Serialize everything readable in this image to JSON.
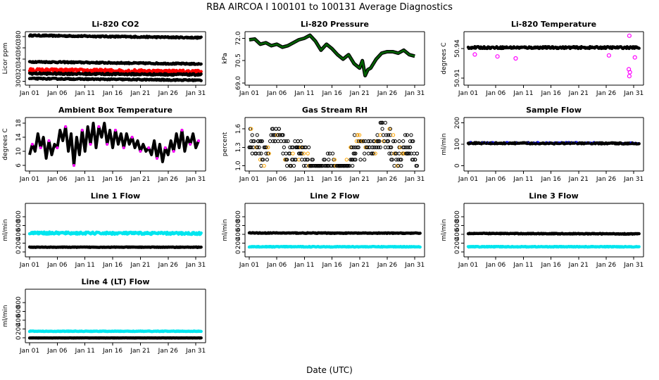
{
  "figure": {
    "title": "RBA   AIRCOA I   100101 to 100131   Average Diagnostics",
    "xlabel": "Date (UTC)"
  },
  "colors": {
    "black": "#000000",
    "red": "#ff0000",
    "magenta": "#ff00ff",
    "darkgreen": "#006400",
    "blue": "#0000ff",
    "cyan": "#00e5ee",
    "orange": "#ffa500"
  },
  "chart_data": [
    {
      "type": "scatter",
      "title": "Li-820 CO2",
      "ylabel": "Licor ppm",
      "xticks": [
        "Jan 01",
        "Jan 06",
        "Jan 11",
        "Jan 16",
        "Jan 21",
        "Jan 26",
        "Jan 31"
      ],
      "xlim": [
        1,
        32
      ],
      "ylim": [
        297,
        385
      ],
      "yticks": [
        300,
        320,
        340,
        360,
        380
      ],
      "series": [
        {
          "name": "band 1",
          "color": "black",
          "x": [
            1,
            32
          ],
          "y": [
            382,
            378
          ],
          "jitter": 1.2
        },
        {
          "name": "band 2",
          "color": "black",
          "x": [
            1,
            32
          ],
          "y": [
            335,
            331
          ],
          "jitter": 1.2
        },
        {
          "name": "band 3",
          "color": "red",
          "x": [
            1,
            32
          ],
          "y": [
            320,
            317
          ],
          "jitter": 3
        },
        {
          "name": "band 4",
          "color": "black",
          "x": [
            1,
            32
          ],
          "y": [
            314,
            312
          ],
          "jitter": 1.5
        },
        {
          "name": "band 5",
          "color": "black",
          "x": [
            1,
            32
          ],
          "y": [
            305,
            302
          ],
          "jitter": 1
        }
      ]
    },
    {
      "type": "line",
      "title": "Li-820 Pressure",
      "ylabel": "kPa",
      "xticks": [
        "Jan 01",
        "Jan 06",
        "Jan 11",
        "Jan 16",
        "Jan 21",
        "Jan 26",
        "Jan 31"
      ],
      "xlim": [
        1,
        32
      ],
      "ylim": [
        69.0,
        72.3
      ],
      "yticks": [
        69.0,
        70.5,
        72.0
      ],
      "ytick_labels": [
        "69.0",
        "70.5",
        "72.0"
      ],
      "series": [
        {
          "name": "pressure",
          "color": "darkgreen",
          "edge": "black",
          "x": [
            1,
            2,
            3,
            4,
            5,
            6,
            7,
            8,
            9,
            10,
            11,
            12,
            13,
            14,
            15,
            16,
            17,
            18,
            19,
            20,
            21,
            21.5,
            22,
            22.5,
            23,
            24,
            25,
            26,
            27,
            28,
            29,
            30,
            31
          ],
          "y": [
            71.9,
            71.95,
            71.6,
            71.7,
            71.5,
            71.6,
            71.4,
            71.5,
            71.7,
            71.9,
            72.0,
            72.2,
            71.8,
            71.2,
            71.6,
            71.3,
            70.9,
            70.6,
            70.9,
            70.3,
            70.0,
            70.5,
            69.5,
            69.9,
            70.0,
            70.6,
            71.0,
            71.1,
            71.1,
            71.0,
            71.2,
            70.9,
            70.8
          ]
        }
      ]
    },
    {
      "type": "scatter",
      "title": "Li-820 Temperature",
      "ylabel": "degrees C",
      "xticks": [
        "Jan 01",
        "Jan 06",
        "Jan 11",
        "Jan 16",
        "Jan 21",
        "Jan 26",
        "Jan 31"
      ],
      "xlim": [
        1,
        32
      ],
      "ylim": [
        50.905,
        50.955
      ],
      "yticks": [
        50.91,
        50.94
      ],
      "ytick_labels": [
        "50.91",
        "50.94"
      ],
      "series": [
        {
          "name": "temperature",
          "color": "black",
          "x": [
            1,
            32
          ],
          "y": [
            50.941,
            50.941
          ],
          "jitter": 0.001
        }
      ],
      "outliers": [
        {
          "x": 30.2,
          "y": 50.953,
          "color": "magenta"
        },
        {
          "x": 30.2,
          "y": 50.912,
          "color": "magenta"
        },
        {
          "x": 30.3,
          "y": 50.916,
          "color": "magenta"
        },
        {
          "x": 30.1,
          "y": 50.919,
          "color": "magenta"
        },
        {
          "x": 9.6,
          "y": 50.93,
          "color": "magenta"
        },
        {
          "x": 2.2,
          "y": 50.934,
          "color": "magenta"
        },
        {
          "x": 6.3,
          "y": 50.932,
          "color": "magenta"
        },
        {
          "x": 26.5,
          "y": 50.933,
          "color": "magenta"
        },
        {
          "x": 31.2,
          "y": 50.931,
          "color": "magenta"
        }
      ]
    },
    {
      "type": "line",
      "title": "Ambient Box Temperature",
      "ylabel": "degrees C",
      "xticks": [
        "Jan 01",
        "Jan 06",
        "Jan 11",
        "Jan 16",
        "Jan 21",
        "Jan 26",
        "Jan 31"
      ],
      "xlim": [
        1,
        32
      ],
      "ylim": [
        5,
        19
      ],
      "yticks": [
        6,
        10,
        14,
        18
      ],
      "series": [
        {
          "name": "box temperature",
          "color": "black",
          "accent": "magenta",
          "x": [
            1,
            1.5,
            2,
            2.5,
            3,
            3.5,
            4,
            4.5,
            5,
            5.5,
            6,
            6.5,
            7,
            7.5,
            8,
            8.5,
            9,
            9.5,
            10,
            10.5,
            11,
            11.5,
            12,
            12.5,
            13,
            13.5,
            14,
            14.5,
            15,
            15.5,
            16,
            16.5,
            17,
            17.5,
            18,
            18.5,
            19,
            19.5,
            20,
            20.5,
            21,
            21.5,
            22,
            22.5,
            23,
            23.5,
            24,
            24.5,
            25,
            25.5,
            26,
            26.5,
            27,
            27.5,
            28,
            28.5,
            29,
            29.5,
            30,
            30.5,
            31,
            31.5
          ],
          "y": [
            9,
            12,
            10,
            15,
            11,
            14,
            8,
            13,
            9,
            12,
            11,
            16,
            13,
            17,
            10,
            15,
            6,
            14,
            9,
            16,
            10,
            17,
            12,
            18,
            11,
            17,
            14,
            18,
            12,
            16,
            11,
            16,
            12,
            15,
            11,
            15,
            12,
            14,
            11,
            13,
            10,
            12,
            10,
            11,
            9,
            13,
            8,
            12,
            7,
            11,
            9,
            13,
            10,
            15,
            11,
            16,
            10,
            14,
            12,
            15,
            11,
            13
          ]
        }
      ]
    },
    {
      "type": "scatter",
      "title": "Gas Stream RH",
      "ylabel": "percent",
      "xticks": [
        "Jan 01",
        "Jan 06",
        "Jan 11",
        "Jan 16",
        "Jan 21",
        "Jan 26",
        "Jan 31"
      ],
      "xlim": [
        1,
        32
      ],
      "ylim": [
        0.95,
        1.75
      ],
      "yticks": [
        1.0,
        1.3,
        1.6
      ],
      "ytick_labels": [
        "1.0",
        "1.3",
        "1.6"
      ],
      "quantized_levels": [
        1.0,
        1.1,
        1.2,
        1.3,
        1.4,
        1.5,
        1.6,
        1.7
      ],
      "series": [
        {
          "name": "RH",
          "color": "black",
          "accent": "orange",
          "x": [
            1,
            31.5
          ],
          "y": [
            1.3,
            1.3
          ]
        }
      ]
    },
    {
      "type": "scatter",
      "title": "Sample Flow",
      "ylabel": "ml/min",
      "xticks": [
        "Jan 01",
        "Jan 06",
        "Jan 11",
        "Jan 16",
        "Jan 21",
        "Jan 26",
        "Jan 31"
      ],
      "xlim": [
        1,
        32
      ],
      "ylim": [
        -15,
        215
      ],
      "yticks": [
        0,
        100,
        200
      ],
      "series": [
        {
          "name": "sample flow",
          "color": "black",
          "accent": "blue",
          "x": [
            1,
            32
          ],
          "y": [
            105,
            104
          ],
          "jitter": 3
        }
      ]
    },
    {
      "type": "scatter",
      "title": "Line 1 Flow",
      "ylabel": "ml/min",
      "xticks": [
        "Jan 01",
        "Jan 06",
        "Jan 11",
        "Jan 16",
        "Jan 21",
        "Jan 26",
        "Jan 31"
      ],
      "xlim": [
        1,
        32
      ],
      "ylim": [
        -60,
        1050
      ],
      "yticks": [
        0,
        200,
        400,
        600,
        800
      ],
      "series": [
        {
          "name": "line 1 flow",
          "color": "cyan",
          "x": [
            1,
            32
          ],
          "y": [
            430,
            420
          ],
          "jitter": 25
        },
        {
          "name": "baseline",
          "color": "black",
          "x": [
            1,
            32
          ],
          "y": [
            110,
            110
          ],
          "jitter": 6
        }
      ]
    },
    {
      "type": "scatter",
      "title": "Line 2 Flow",
      "ylabel": "ml/min",
      "xticks": [
        "Jan 01",
        "Jan 06",
        "Jan 11",
        "Jan 16",
        "Jan 21",
        "Jan 26",
        "Jan 31"
      ],
      "xlim": [
        1,
        32
      ],
      "ylim": [
        -60,
        1050
      ],
      "yticks": [
        0,
        200,
        400,
        600,
        800
      ],
      "series": [
        {
          "name": "line 2 flow",
          "color": "black",
          "x": [
            1,
            32
          ],
          "y": [
            430,
            425
          ],
          "jitter": 8
        },
        {
          "name": "baseline",
          "color": "cyan",
          "x": [
            1,
            32
          ],
          "y": [
            120,
            120
          ],
          "jitter": 8
        }
      ]
    },
    {
      "type": "scatter",
      "title": "Line 3 Flow",
      "ylabel": "ml/min",
      "xticks": [
        "Jan 01",
        "Jan 06",
        "Jan 11",
        "Jan 16",
        "Jan 21",
        "Jan 26",
        "Jan 31"
      ],
      "xlim": [
        1,
        32
      ],
      "ylim": [
        -60,
        1050
      ],
      "yticks": [
        0,
        200,
        400,
        600,
        800
      ],
      "series": [
        {
          "name": "line 3 flow",
          "color": "black",
          "x": [
            1,
            32
          ],
          "y": [
            420,
            410
          ],
          "jitter": 8
        },
        {
          "name": "baseline",
          "color": "cyan",
          "x": [
            1,
            32
          ],
          "y": [
            120,
            120
          ],
          "jitter": 8
        }
      ]
    },
    {
      "type": "scatter",
      "title": "Line 4 (LT) Flow",
      "ylabel": "ml/min",
      "xticks": [
        "Jan 01",
        "Jan 06",
        "Jan 11",
        "Jan 16",
        "Jan 21",
        "Jan 26",
        "Jan 31"
      ],
      "xlim": [
        1,
        32
      ],
      "ylim": [
        -60,
        1050
      ],
      "yticks": [
        0,
        200,
        400,
        600,
        800
      ],
      "series": [
        {
          "name": "line 4 flow",
          "color": "cyan",
          "x": [
            1,
            32
          ],
          "y": [
            150,
            150
          ],
          "jitter": 6
        },
        {
          "name": "baseline",
          "color": "black",
          "x": [
            1,
            32
          ],
          "y": [
            0,
            0
          ],
          "jitter": 3
        }
      ]
    }
  ]
}
